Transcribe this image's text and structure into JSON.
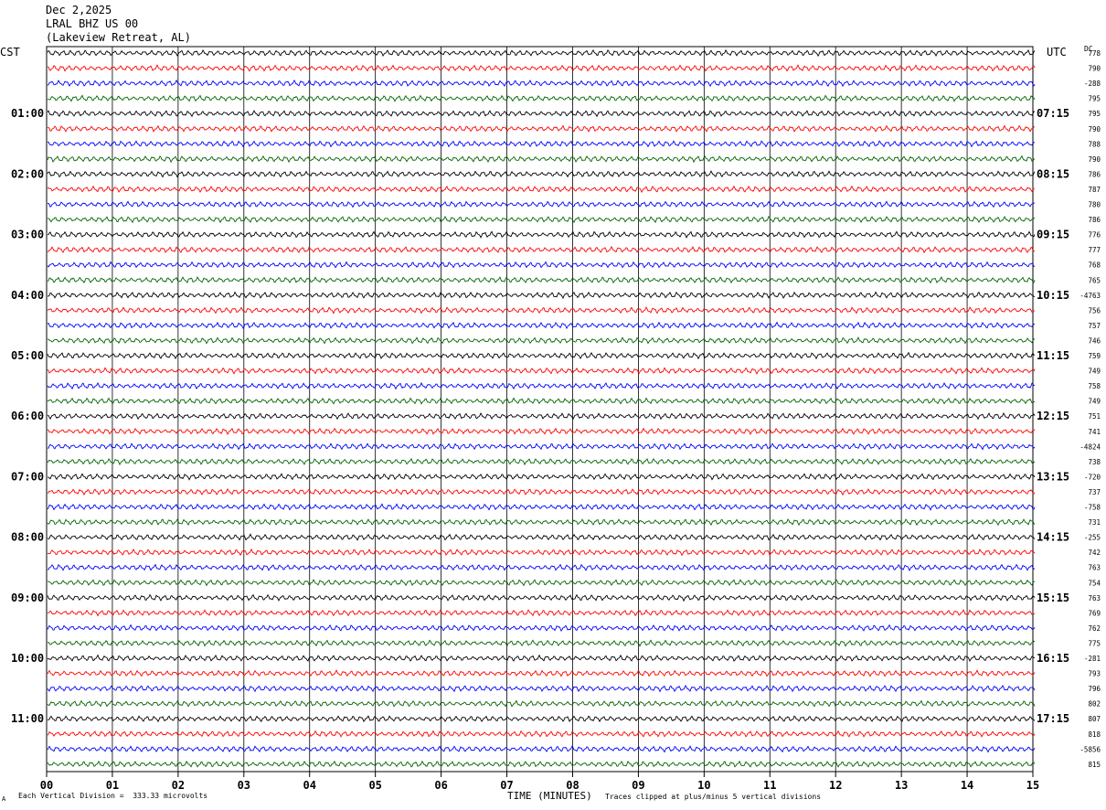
{
  "header": {
    "date": "Dec 2,2025",
    "station": "LRAL BHZ US 00",
    "location": "(Lakeview Retreat, AL)"
  },
  "left_zone": "CST",
  "right_zone": "UTC",
  "dc_label": "DC",
  "footer": {
    "scale": "Each Vertical Division =  333.33 microvolts",
    "clip_note": "Traces clipped at plus/minus 5 vertical divisions",
    "corner_mark": "A"
  },
  "colors": {
    "trace_cycle": [
      "#000000",
      "#ff0000",
      "#0000ff",
      "#006400"
    ],
    "grid": "#000000"
  },
  "chart_data": {
    "type": "line",
    "title": "",
    "xlabel": "TIME (MINUTES)",
    "ylabel": "",
    "xlim": [
      0,
      15
    ],
    "x_ticks": [
      "00",
      "01",
      "02",
      "03",
      "04",
      "05",
      "06",
      "07",
      "08",
      "09",
      "10",
      "11",
      "12",
      "13",
      "14",
      "15"
    ],
    "row_count": 48,
    "rows_per_hour": 4,
    "minutes_per_row": 15,
    "left_hour_labels": [
      "01:00",
      "02:00",
      "03:00",
      "04:00",
      "05:00",
      "06:00",
      "07:00",
      "08:00",
      "09:00",
      "10:00",
      "11:00"
    ],
    "right_hour_labels": [
      "07:15",
      "08:15",
      "09:15",
      "10:15",
      "11:15",
      "12:15",
      "13:15",
      "14:15",
      "15:15",
      "16:15",
      "17:15"
    ],
    "dc_offsets": [
      "778",
      "790",
      "-288",
      "795",
      "795",
      "790",
      "788",
      "790",
      "786",
      "787",
      "780",
      "786",
      "776",
      "777",
      "768",
      "765",
      "-4763",
      "756",
      "757",
      "746",
      "759",
      "749",
      "758",
      "749",
      "751",
      "741",
      "-4824",
      "738",
      "-720",
      "737",
      "-758",
      "731",
      "-255",
      "742",
      "763",
      "754",
      "763",
      "769",
      "762",
      "775",
      "-281",
      "793",
      "796",
      "802",
      "807",
      "818",
      "-5856",
      "815"
    ]
  }
}
